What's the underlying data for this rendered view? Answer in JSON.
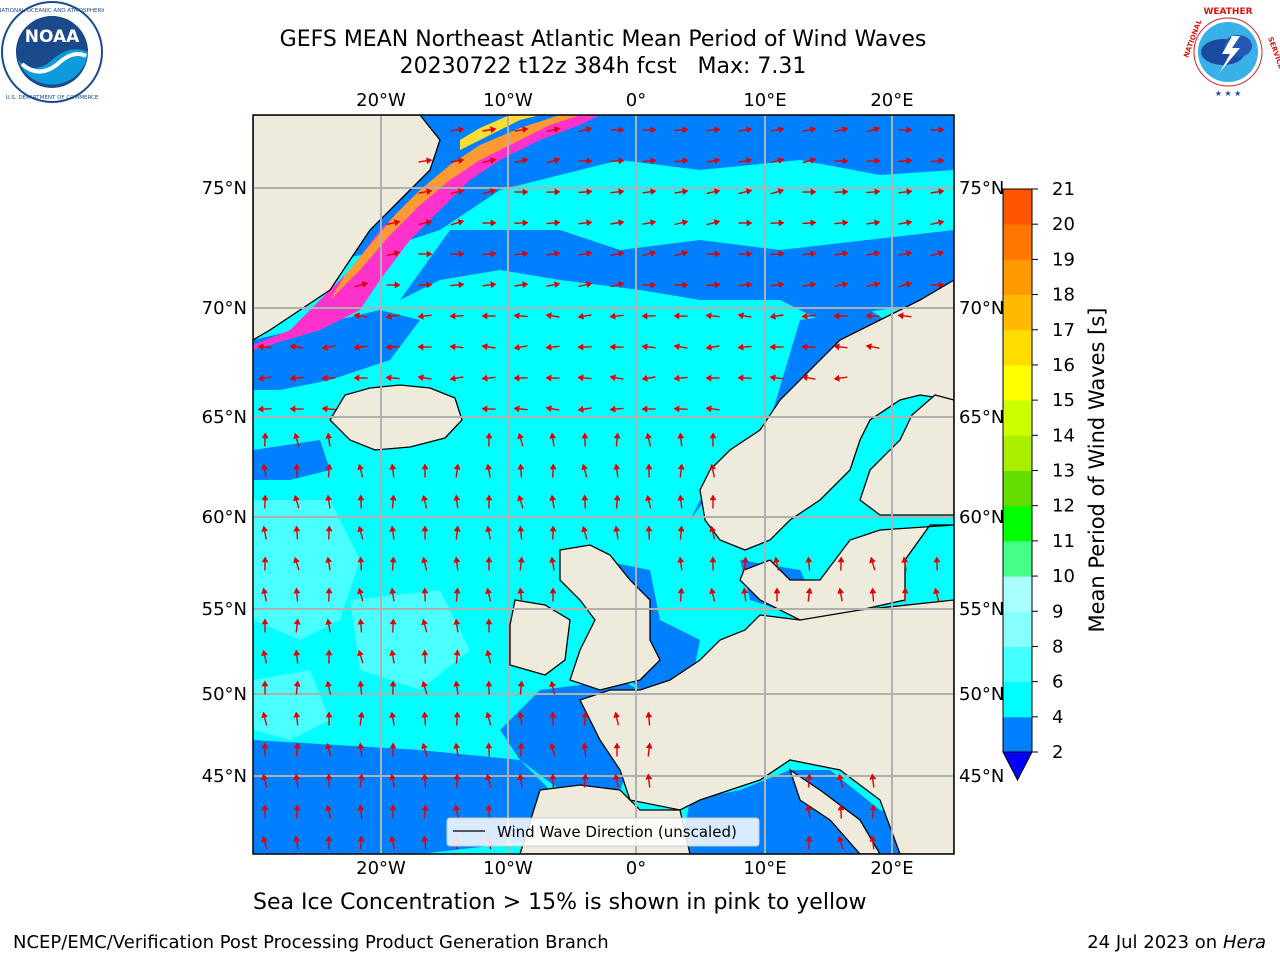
{
  "title_line1": "GEFS MEAN Northeast Atlantic Mean Period of Wind Waves",
  "title_line2": "20230722 t12z 384h fcst   Max: 7.31",
  "logos": {
    "left": {
      "icon": "noaa-logo",
      "text": "NOAA",
      "ring_text": "NATIONAL OCEANIC AND ATMOSPHERIC ADMINISTRATION · U.S. DEPARTMENT OF COMMERCE"
    },
    "right": {
      "icon": "nws-logo",
      "ring_text": "NATIONAL WEATHER SERVICE"
    }
  },
  "map": {
    "top_lon_labels": [
      "20°W",
      "10°W",
      "0°",
      "10°E",
      "20°E"
    ],
    "bottom_lon_labels": [
      "20°W",
      "10°W",
      "0°",
      "10°E",
      "20°E"
    ],
    "left_lat_labels": [
      "75°N",
      "70°N",
      "65°N",
      "60°N",
      "55°N",
      "50°N",
      "45°N"
    ],
    "right_lat_labels": [
      "75°N",
      "70°N",
      "65°N",
      "60°N",
      "55°N",
      "50°N",
      "45°N"
    ],
    "legend_label": "Wind Wave Direction (unscaled)",
    "ocean_colors": [
      "#0080ff",
      "#00ffff",
      "#44ffff",
      "#aaffff"
    ],
    "land_color": "#efebdc",
    "arrow_color": "#e00000"
  },
  "colorbar": {
    "label": "Mean Period of Wind Waves [s]",
    "ticks": [
      "2",
      "4",
      "6",
      "8",
      "9",
      "10",
      "11",
      "12",
      "13",
      "14",
      "15",
      "16",
      "17",
      "18",
      "19",
      "20",
      "21"
    ],
    "colors": [
      "#0080ff",
      "#00ffff",
      "#44ffff",
      "#88ffff",
      "#aaffff",
      "#44ff88",
      "#00ff00",
      "#66dd00",
      "#aaee00",
      "#ccff00",
      "#ffff00",
      "#ffdd00",
      "#ffbb00",
      "#ff9900",
      "#ff7700",
      "#ff5500",
      "#ff3300",
      "#ff0000"
    ],
    "under_color": "#0000ff"
  },
  "subnote": "Sea Ice Concentration > 15% is shown in pink to yellow",
  "footer_left": "NCEP/EMC/Verification Post Processing Product Generation Branch",
  "footer_right_date": "24 Jul 2023 on",
  "footer_right_host": "Hera"
}
